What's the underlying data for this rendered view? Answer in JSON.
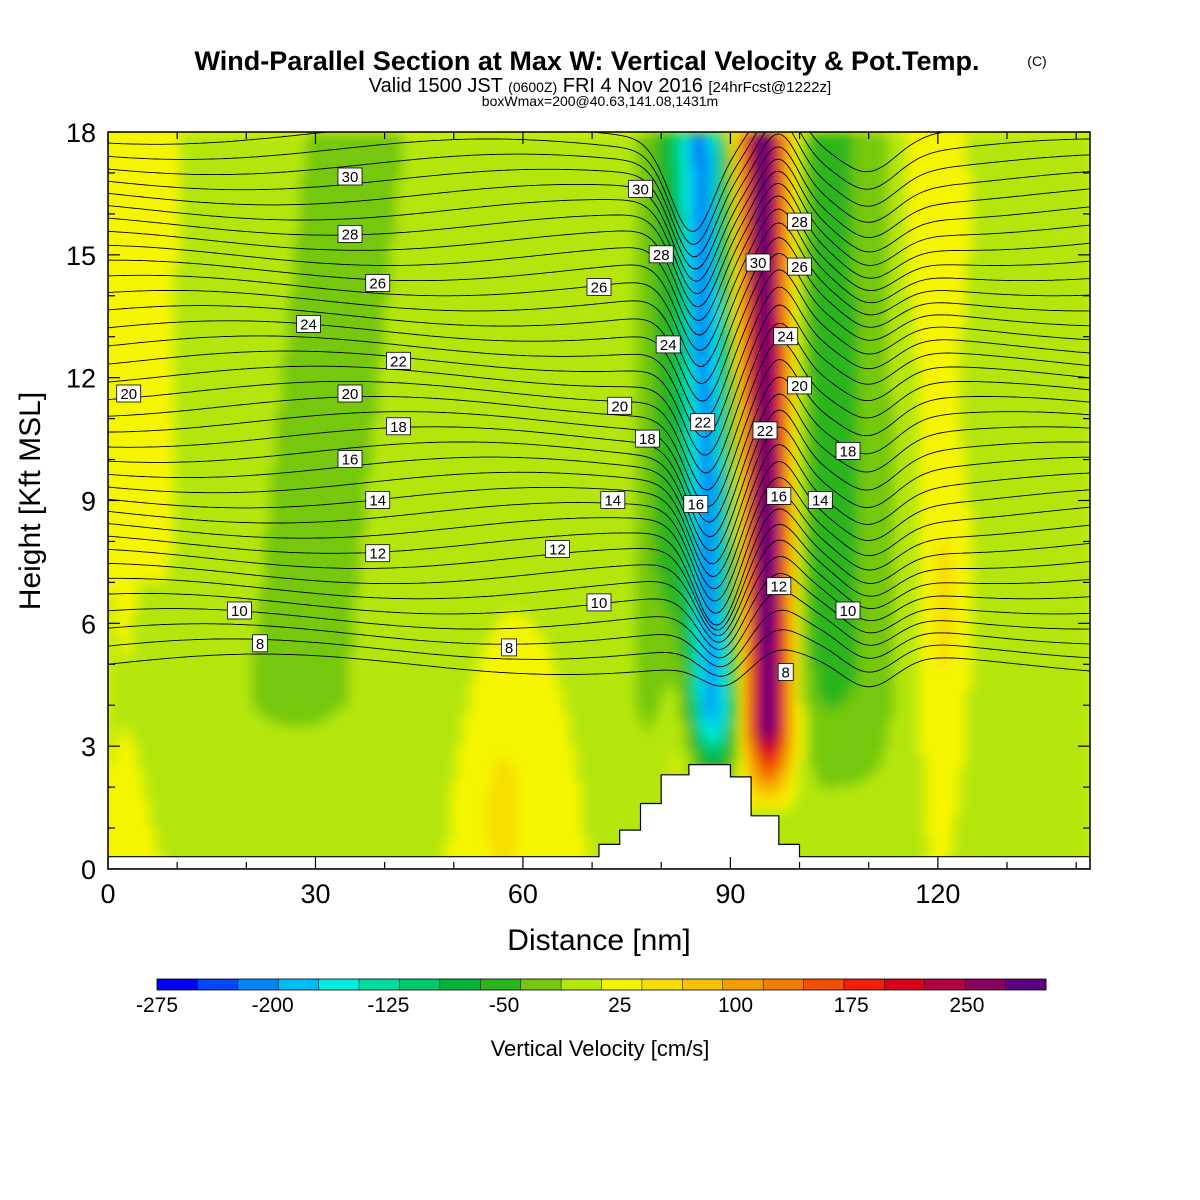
{
  "header": {
    "title": "Wind-Parallel Section at Max W: Vertical Velocity & Pot.Temp.",
    "title_tag": "(C)",
    "valid_prefix": "Valid 1500 JST",
    "valid_utc": "(0600Z)",
    "valid_date": "FRI 4 Nov 2016",
    "forecast": "[24hrFcst@1222z]",
    "box_info": "boxWmax=200@40.63,141.08,1431m"
  },
  "chart_data": {
    "type": "heatmap",
    "title": "Wind-Parallel Section at Max W: Vertical Velocity & Pot.Temp.",
    "xlabel": "Distance [nm]",
    "ylabel": "Height [Kft MSL]",
    "xlim": [
      0,
      142
    ],
    "ylim": [
      0,
      18
    ],
    "x_ticks": [
      "0",
      "30",
      "60",
      "90",
      "120"
    ],
    "y_ticks": [
      "0",
      "3",
      "6",
      "9",
      "12",
      "15",
      "18"
    ],
    "colorbar": {
      "label": "Vertical Velocity [cm/s]",
      "tick_labels": [
        "-275",
        "-200",
        "-125",
        "-50",
        "25",
        "100",
        "175",
        "250"
      ],
      "tick_values": [
        -275,
        -200,
        -125,
        -50,
        25,
        100,
        175,
        250
      ],
      "colors": [
        "#0000f2",
        "#0047f7",
        "#0085f5",
        "#00bdf7",
        "#00ede6",
        "#00dba0",
        "#00c96b",
        "#00b53b",
        "#2ab51a",
        "#75c80e",
        "#b4e60a",
        "#f5f500",
        "#f7dd00",
        "#f7c000",
        "#f59e00",
        "#f27b00",
        "#f05000",
        "#f02000",
        "#d9001a",
        "#b30040",
        "#860060",
        "#5e0082"
      ]
    },
    "terrain_kft": [
      [
        0,
        0.3
      ],
      [
        71,
        0.3
      ],
      [
        71,
        0.6
      ],
      [
        74,
        0.6
      ],
      [
        74,
        0.95
      ],
      [
        77,
        0.95
      ],
      [
        77,
        1.6
      ],
      [
        80,
        1.6
      ],
      [
        80,
        2.3
      ],
      [
        84,
        2.3
      ],
      [
        84,
        2.55
      ],
      [
        90,
        2.55
      ],
      [
        90,
        2.25
      ],
      [
        93,
        2.25
      ],
      [
        93,
        1.3
      ],
      [
        97,
        1.3
      ],
      [
        97,
        0.6
      ],
      [
        100,
        0.6
      ],
      [
        100,
        0.3
      ],
      [
        142,
        0.3
      ]
    ],
    "w_peaks": [
      {
        "name": "downdraft",
        "x_nm": 87.5,
        "w_cms": -225
      },
      {
        "name": "updraft",
        "x_nm": 95.5,
        "w_cms": 290
      }
    ],
    "theta_contour_labels": [
      {
        "text": "30",
        "x_nm": 35,
        "y_kft": 16.9
      },
      {
        "text": "28",
        "x_nm": 35,
        "y_kft": 15.5
      },
      {
        "text": "26",
        "x_nm": 39,
        "y_kft": 14.3
      },
      {
        "text": "24",
        "x_nm": 29,
        "y_kft": 13.3
      },
      {
        "text": "22",
        "x_nm": 42,
        "y_kft": 12.4
      },
      {
        "text": "20",
        "x_nm": 3,
        "y_kft": 11.6
      },
      {
        "text": "20",
        "x_nm": 35,
        "y_kft": 11.6
      },
      {
        "text": "18",
        "x_nm": 42,
        "y_kft": 10.8
      },
      {
        "text": "16",
        "x_nm": 35,
        "y_kft": 10.0
      },
      {
        "text": "14",
        "x_nm": 39,
        "y_kft": 9.0
      },
      {
        "text": "12",
        "x_nm": 39,
        "y_kft": 7.7
      },
      {
        "text": "10",
        "x_nm": 19,
        "y_kft": 6.3
      },
      {
        "text": "8",
        "x_nm": 22,
        "y_kft": 5.5
      },
      {
        "text": "8",
        "x_nm": 58,
        "y_kft": 5.4
      },
      {
        "text": "30",
        "x_nm": 77,
        "y_kft": 16.6
      },
      {
        "text": "28",
        "x_nm": 80,
        "y_kft": 15.0
      },
      {
        "text": "26",
        "x_nm": 71,
        "y_kft": 14.2
      },
      {
        "text": "24",
        "x_nm": 81,
        "y_kft": 12.8
      },
      {
        "text": "20",
        "x_nm": 74,
        "y_kft": 11.3
      },
      {
        "text": "18",
        "x_nm": 78,
        "y_kft": 10.5
      },
      {
        "text": "22",
        "x_nm": 86,
        "y_kft": 10.9
      },
      {
        "text": "14",
        "x_nm": 73,
        "y_kft": 9.0
      },
      {
        "text": "16",
        "x_nm": 85,
        "y_kft": 8.9
      },
      {
        "text": "12",
        "x_nm": 65,
        "y_kft": 7.8
      },
      {
        "text": "10",
        "x_nm": 71,
        "y_kft": 6.5
      },
      {
        "text": "30",
        "x_nm": 94,
        "y_kft": 14.8
      },
      {
        "text": "28",
        "x_nm": 100,
        "y_kft": 15.8
      },
      {
        "text": "26",
        "x_nm": 100,
        "y_kft": 14.7
      },
      {
        "text": "24",
        "x_nm": 98,
        "y_kft": 13.0
      },
      {
        "text": "20",
        "x_nm": 100,
        "y_kft": 11.8
      },
      {
        "text": "22",
        "x_nm": 95,
        "y_kft": 10.7
      },
      {
        "text": "18",
        "x_nm": 107,
        "y_kft": 10.2
      },
      {
        "text": "16",
        "x_nm": 97,
        "y_kft": 9.1
      },
      {
        "text": "14",
        "x_nm": 103,
        "y_kft": 9.0
      },
      {
        "text": "12",
        "x_nm": 97,
        "y_kft": 6.9
      },
      {
        "text": "10",
        "x_nm": 107,
        "y_kft": 6.3
      },
      {
        "text": "8",
        "x_nm": 98,
        "y_kft": 4.8
      }
    ]
  }
}
